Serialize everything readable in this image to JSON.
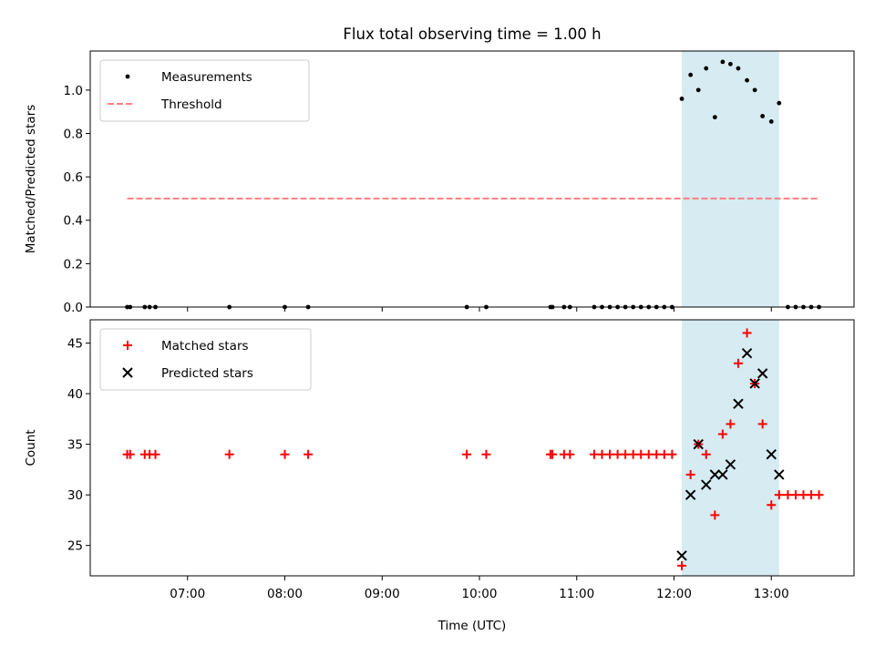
{
  "chart_data": {
    "type": "scatter",
    "title": "Flux total observing time = 1.00 h",
    "xlabel": "Time (UTC)",
    "x_unit": "hours (UTC, decimal)",
    "xlim": [
      6.0,
      13.85
    ],
    "x_tick_values": [
      7,
      8,
      9,
      10,
      11,
      12,
      13
    ],
    "x_tick_labels": [
      "07:00",
      "08:00",
      "09:00",
      "10:00",
      "11:00",
      "12:00",
      "13:00"
    ],
    "highlight_span": {
      "x_start": 12.08,
      "x_end": 13.08,
      "color": "#add8e6",
      "opacity": 0.5
    },
    "panels": [
      {
        "ylabel": "Matched/Predicted stars",
        "ylim": [
          0,
          1.18
        ],
        "y_tick_values": [
          0,
          0.2,
          0.4,
          0.6,
          0.8,
          1.0
        ],
        "y_tick_labels": [
          "0.0",
          "0.2",
          "0.4",
          "0.6",
          "0.8",
          "1.0"
        ],
        "legend_position": "upper-left",
        "series": [
          {
            "name": "Measurements",
            "type": "scatter",
            "marker": "dot",
            "color": "#000000",
            "points": [
              [
                6.38,
                0
              ],
              [
                6.41,
                0
              ],
              [
                6.56,
                0
              ],
              [
                6.61,
                0
              ],
              [
                6.67,
                0
              ],
              [
                7.43,
                0
              ],
              [
                8.0,
                0
              ],
              [
                8.24,
                0
              ],
              [
                9.87,
                0
              ],
              [
                10.07,
                0
              ],
              [
                10.73,
                0
              ],
              [
                10.75,
                0
              ],
              [
                10.87,
                0
              ],
              [
                10.93,
                0
              ],
              [
                11.18,
                0
              ],
              [
                11.26,
                0
              ],
              [
                11.34,
                0
              ],
              [
                11.42,
                0
              ],
              [
                11.5,
                0
              ],
              [
                11.58,
                0
              ],
              [
                11.66,
                0
              ],
              [
                11.74,
                0
              ],
              [
                11.82,
                0
              ],
              [
                11.9,
                0
              ],
              [
                11.98,
                0
              ],
              [
                12.08,
                0.96
              ],
              [
                12.17,
                1.07
              ],
              [
                12.25,
                1.0
              ],
              [
                12.33,
                1.1
              ],
              [
                12.42,
                0.875
              ],
              [
                12.5,
                1.13
              ],
              [
                12.58,
                1.12
              ],
              [
                12.66,
                1.1
              ],
              [
                12.75,
                1.045
              ],
              [
                12.83,
                1.0
              ],
              [
                12.91,
                0.88
              ],
              [
                13.0,
                0.855
              ],
              [
                13.08,
                0.94
              ],
              [
                13.17,
                0
              ],
              [
                13.25,
                0
              ],
              [
                13.33,
                0
              ],
              [
                13.41,
                0
              ],
              [
                13.49,
                0
              ]
            ]
          },
          {
            "name": "Threshold",
            "type": "line",
            "style": "dashed",
            "color": "#ff7f7f",
            "points": [
              [
                6.38,
                0.5
              ],
              [
                13.48,
                0.5
              ]
            ]
          }
        ]
      },
      {
        "ylabel": "Count",
        "ylim": [
          22,
          47.3
        ],
        "y_tick_values": [
          25,
          30,
          35,
          40,
          45
        ],
        "y_tick_labels": [
          "25",
          "30",
          "35",
          "40",
          "45"
        ],
        "legend_position": "upper-left",
        "series": [
          {
            "name": "Matched stars",
            "type": "scatter",
            "marker": "plus",
            "color": "#ff0000",
            "points": [
              [
                6.38,
                34
              ],
              [
                6.41,
                34
              ],
              [
                6.56,
                34
              ],
              [
                6.61,
                34
              ],
              [
                6.67,
                34
              ],
              [
                7.43,
                34
              ],
              [
                8.0,
                34
              ],
              [
                8.24,
                34
              ],
              [
                9.87,
                34
              ],
              [
                10.07,
                34
              ],
              [
                10.73,
                34
              ],
              [
                10.75,
                34
              ],
              [
                10.87,
                34
              ],
              [
                10.93,
                34
              ],
              [
                11.18,
                34
              ],
              [
                11.26,
                34
              ],
              [
                11.34,
                34
              ],
              [
                11.42,
                34
              ],
              [
                11.5,
                34
              ],
              [
                11.58,
                34
              ],
              [
                11.66,
                34
              ],
              [
                11.74,
                34
              ],
              [
                11.82,
                34
              ],
              [
                11.9,
                34
              ],
              [
                11.98,
                34
              ],
              [
                12.08,
                23
              ],
              [
                12.17,
                32
              ],
              [
                12.25,
                35
              ],
              [
                12.33,
                34
              ],
              [
                12.42,
                28
              ],
              [
                12.5,
                36
              ],
              [
                12.58,
                37
              ],
              [
                12.66,
                43
              ],
              [
                12.75,
                46
              ],
              [
                12.83,
                41
              ],
              [
                12.91,
                37
              ],
              [
                13.0,
                29
              ],
              [
                13.08,
                30
              ],
              [
                13.17,
                30
              ],
              [
                13.25,
                30
              ],
              [
                13.33,
                30
              ],
              [
                13.41,
                30
              ],
              [
                13.49,
                30
              ]
            ]
          },
          {
            "name": "Predicted stars",
            "type": "scatter",
            "marker": "x",
            "color": "#000000",
            "points": [
              [
                12.08,
                24
              ],
              [
                12.17,
                30
              ],
              [
                12.25,
                35
              ],
              [
                12.33,
                31
              ],
              [
                12.42,
                32
              ],
              [
                12.5,
                32
              ],
              [
                12.58,
                33
              ],
              [
                12.66,
                39
              ],
              [
                12.75,
                44
              ],
              [
                12.83,
                41
              ],
              [
                12.91,
                42
              ],
              [
                13.0,
                34
              ],
              [
                13.08,
                32
              ]
            ]
          }
        ]
      }
    ]
  }
}
